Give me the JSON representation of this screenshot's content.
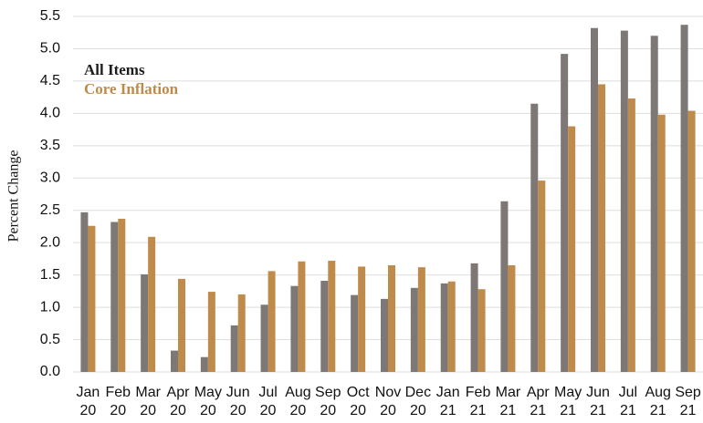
{
  "chart_data": {
    "type": "bar",
    "y_label": "Percent Change",
    "categories": [
      "Jan 20",
      "Feb 20",
      "Mar 20",
      "Apr 20",
      "May 20",
      "Jun 20",
      "Jul 20",
      "Aug 20",
      "Sep 20",
      "Oct 20",
      "Nov 20",
      "Dec 20",
      "Jan 21",
      "Feb 21",
      "Mar 21",
      "Apr 21",
      "May 21",
      "Jun 21",
      "Jul 21",
      "Aug 21",
      "Sep 21"
    ],
    "series": [
      {
        "name": "All Items",
        "color": "#7d7876",
        "label_color": "#1e1e1e",
        "values": [
          2.47,
          2.32,
          1.51,
          0.33,
          0.23,
          0.72,
          1.04,
          1.33,
          1.41,
          1.19,
          1.13,
          1.3,
          1.37,
          1.68,
          2.64,
          4.15,
          4.92,
          5.32,
          5.28,
          5.2,
          5.37
        ]
      },
      {
        "name": "Core Inflation",
        "color": "#bf8b4a",
        "label_color": "#bf8b4a",
        "values": [
          2.26,
          2.37,
          2.09,
          1.44,
          1.24,
          1.2,
          1.56,
          1.71,
          1.72,
          1.63,
          1.65,
          1.62,
          1.4,
          1.28,
          1.65,
          2.96,
          3.8,
          4.45,
          4.23,
          3.98,
          4.04
        ]
      }
    ],
    "ylim": [
      0,
      5.5
    ],
    "yticks": [
      {
        "value": 0,
        "label": "0.0"
      },
      {
        "value": 0.5,
        "label": "0.5"
      },
      {
        "value": 1,
        "label": "1.0"
      },
      {
        "value": 1.5,
        "label": "1.5"
      },
      {
        "value": 2,
        "label": "2.0"
      },
      {
        "value": 2.5,
        "label": "2.5"
      },
      {
        "value": 3,
        "label": "3.0"
      },
      {
        "value": 3.5,
        "label": "3.5"
      },
      {
        "value": 4,
        "label": "4.0"
      },
      {
        "value": 4.5,
        "label": "4.5"
      },
      {
        "value": 5,
        "label": "5.0"
      },
      {
        "value": 5.5,
        "label": "5.5"
      }
    ],
    "grid": true
  }
}
